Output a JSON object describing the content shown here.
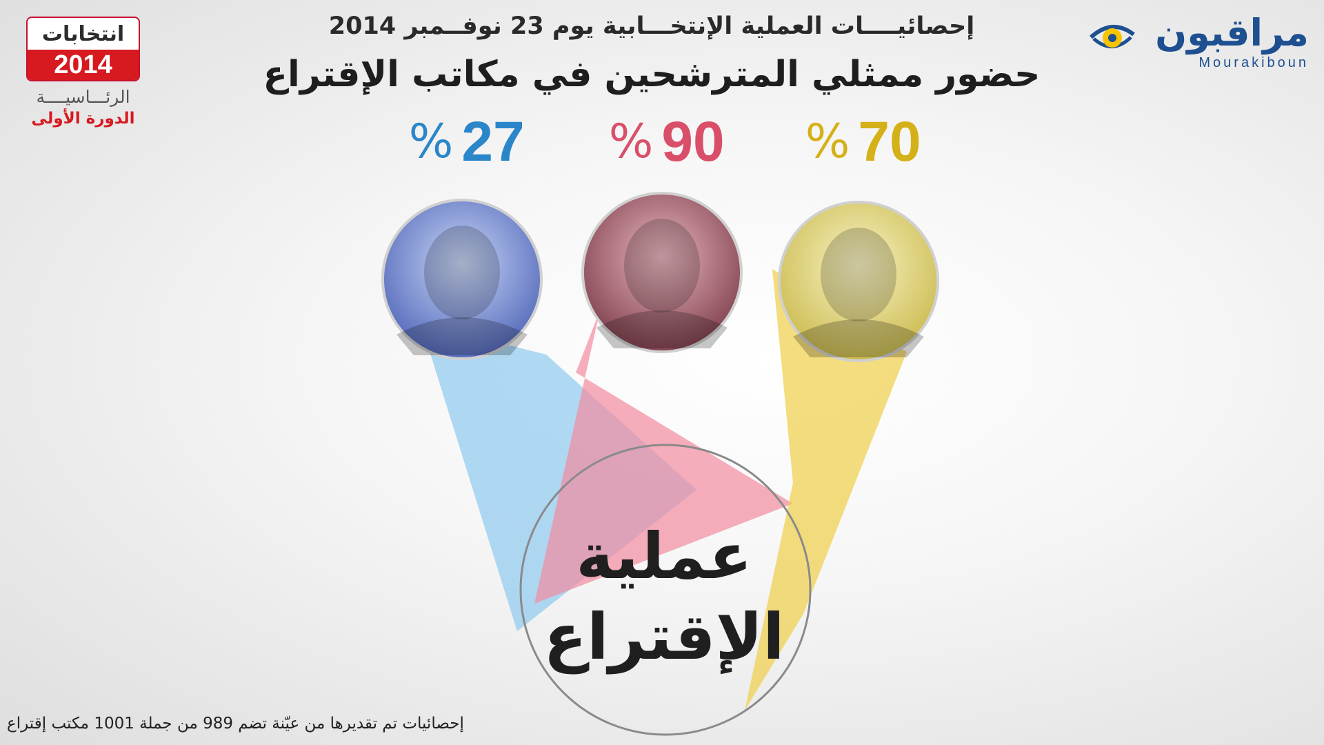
{
  "brand_left": {
    "word": "انتخابات",
    "year": "2014",
    "line1": "الرئـــاسيــــة",
    "line2": "الدورة الأولى"
  },
  "brand_right": {
    "name": "مراقبون",
    "latin": "Mourakiboun"
  },
  "subtitle": "إحصائيــــات العملية الإنتخـــابية يوم 23 نوفــمبر 2014",
  "title": "حضور ممثلي المترشحين في مكاتب الإقتراع",
  "chart_data": {
    "type": "bar",
    "unit": "%",
    "values": [
      27,
      90,
      70
    ],
    "colors": [
      "#2a86c9",
      "#d94f69",
      "#d4b118"
    ],
    "beam_colors": [
      "#8fc9ef",
      "#f28ba0",
      "#f0ce47"
    ],
    "center_label_line1": "عملية",
    "center_label_line2": "الإقتراع"
  },
  "footnote": "إحصائيات تم تقديرها من عيّنة تضم 989 من جملة 1001 مكتب إقتراع"
}
